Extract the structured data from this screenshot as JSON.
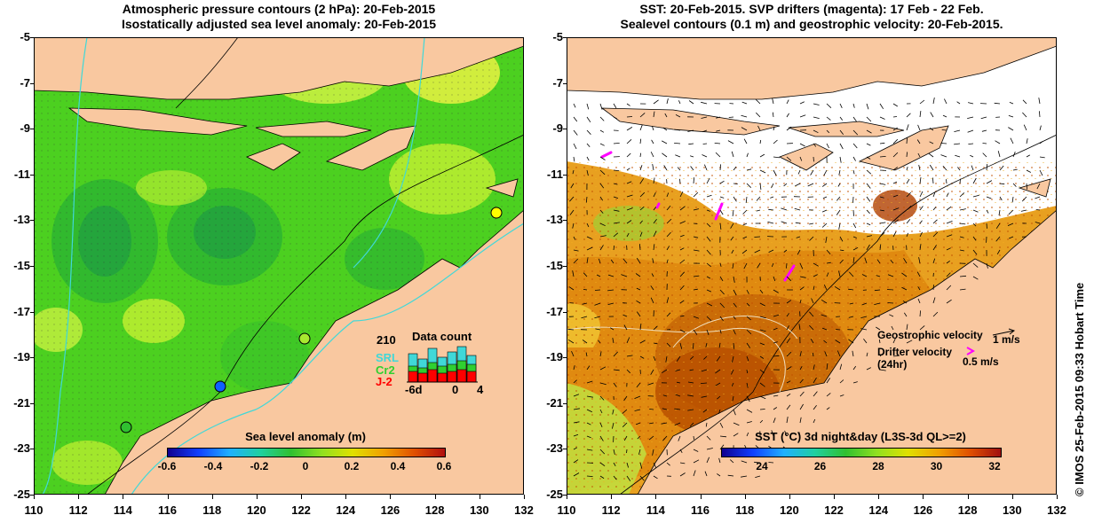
{
  "left_panel": {
    "title_line1": "Atmospheric pressure contours (2 hPa): 20-Feb-2015",
    "title_line2": "Isostatically adjusted sea level anomaly: 20-Feb-2015",
    "colorbar": {
      "title": "Sea level anomaly (m)",
      "ticks": [
        "-0.6",
        "-0.4",
        "-0.2",
        "0",
        "0.2",
        "0.4",
        "0.6"
      ]
    },
    "data_count": {
      "title": "Data count",
      "max_label": "210",
      "legend": [
        "SRL",
        "Cr2",
        "J-2"
      ],
      "x_ticks": [
        "-6d",
        "0",
        "4"
      ]
    }
  },
  "right_panel": {
    "title_line1": "SST: 20-Feb-2015. SVP drifters (magenta): 17 Feb - 22 Feb.",
    "title_line2": "Sealevel contours (0.1 m) and geostrophic velocity: 20-Feb-2015.",
    "colorbar": {
      "title": "SST (°C) 3d night&day (L3S-3d QL>=2)",
      "ticks": [
        "24",
        "26",
        "28",
        "30",
        "32"
      ]
    },
    "legend": {
      "geostrophic": "Geostrophic velocity",
      "geostrophic_scale": "1 m/s",
      "drifter_line1": "Drifter velocity",
      "drifter_line2": "(24hr)",
      "drifter_scale": "0.5 m/s"
    }
  },
  "axes": {
    "y_labels": [
      "-5",
      "-7",
      "-9",
      "-11",
      "-13",
      "-15",
      "-17",
      "-19",
      "-21",
      "-23",
      "-25"
    ],
    "x_labels": [
      "110",
      "112",
      "114",
      "116",
      "118",
      "120",
      "122",
      "124",
      "126",
      "128",
      "130",
      "132"
    ]
  },
  "credit": "© IMOS 25-Feb-2015 09:33 Hobart Time",
  "colors": {
    "land": "#f9c8a0",
    "sla_green": "#4cd020",
    "sst_orange": "#e08a10",
    "drifter": "#ff00ff",
    "shelf_contour": "#40d8d8"
  }
}
